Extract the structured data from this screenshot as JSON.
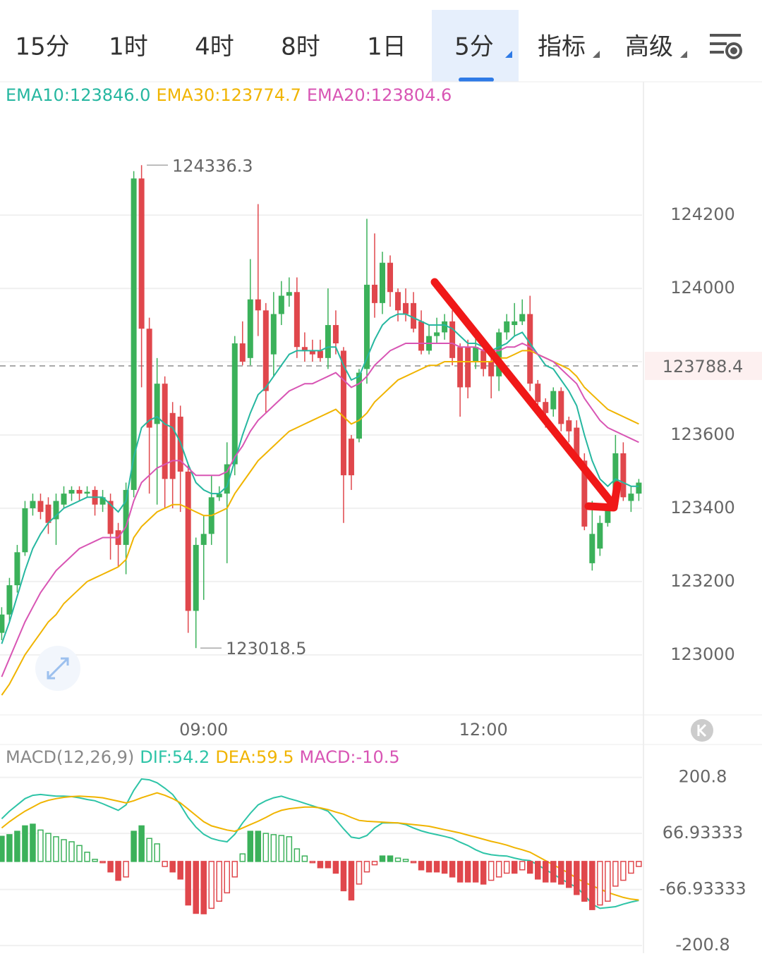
{
  "tabs": {
    "items": [
      "15分",
      "1时",
      "4时",
      "8时",
      "1日",
      "5分",
      "指标",
      "高级"
    ],
    "active": 5
  },
  "chart_data": [
    {
      "type": "candlestick",
      "categories": [
        null,
        null,
        null,
        null,
        null,
        null,
        null,
        null,
        null,
        null,
        null,
        null,
        null,
        null,
        null,
        null,
        null,
        null,
        null,
        null,
        null,
        null,
        null,
        null,
        null,
        null,
        "09:00",
        null,
        null,
        null,
        null,
        null,
        null,
        null,
        null,
        null,
        null,
        null,
        null,
        null,
        null,
        null,
        null,
        null,
        null,
        null,
        null,
        null,
        null,
        null,
        null,
        null,
        null,
        null,
        null,
        null,
        null,
        null,
        null,
        null,
        null,
        null,
        "12:00",
        null,
        null,
        null,
        null,
        null,
        null,
        null,
        null,
        null,
        null,
        null,
        null,
        null,
        null,
        null,
        null,
        null,
        null,
        null,
        null
      ],
      "open": [
        123060,
        123110,
        123190,
        123280,
        123400,
        123420,
        123410,
        123370,
        123410,
        123440,
        123450,
        123440,
        123450,
        123410,
        123420,
        123340,
        123300,
        123450,
        124300,
        123890,
        123630,
        123740,
        123660,
        123650,
        123500,
        123120,
        123300,
        123330,
        123430,
        123440,
        123520,
        123850,
        123810,
        123970,
        123940,
        123820,
        123930,
        123980,
        123990,
        123840,
        123830,
        123830,
        123810,
        123900,
        123830,
        123590,
        123590,
        123780,
        124010,
        123960,
        124070,
        123990,
        123960,
        123960,
        123910,
        123830,
        123870,
        123880,
        123910,
        123840,
        123840,
        123800,
        123830,
        123800,
        123760,
        123880,
        123900,
        123910,
        123930,
        123740,
        123690,
        123670,
        123720,
        123640,
        123620,
        123530,
        123250,
        123290,
        123360,
        123410,
        123550,
        123420,
        123440
      ],
      "high": [
        123130,
        123210,
        123300,
        123420,
        123440,
        123440,
        123430,
        123440,
        123460,
        123460,
        123460,
        123460,
        123460,
        123450,
        123440,
        123360,
        123470,
        124320,
        124336.3,
        123920,
        123810,
        123760,
        123690,
        123680,
        123520,
        123320,
        123380,
        123490,
        123460,
        123580,
        123870,
        123910,
        124080,
        124230,
        123960,
        123990,
        124020,
        124030,
        124030,
        123880,
        123860,
        123860,
        124000,
        123940,
        123840,
        123600,
        123780,
        124190,
        124150,
        124100,
        124090,
        124000,
        124000,
        123990,
        123940,
        123900,
        123920,
        123930,
        123940,
        123850,
        123860,
        123880,
        123850,
        123810,
        123890,
        123930,
        123960,
        123970,
        123980,
        123750,
        123700,
        123730,
        123730,
        123650,
        123640,
        123550,
        123420,
        123380,
        123430,
        123600,
        123580,
        123460,
        123480
      ],
      "low": [
        123040,
        123090,
        123170,
        123270,
        123380,
        123370,
        123330,
        123300,
        123400,
        123420,
        123420,
        123430,
        123380,
        123390,
        123260,
        123240,
        123220,
        123430,
        123730,
        123440,
        123410,
        123400,
        123400,
        123390,
        123060,
        123018.5,
        123150,
        123300,
        123420,
        123250,
        123490,
        123790,
        123790,
        123870,
        123660,
        123760,
        123900,
        123950,
        123810,
        123800,
        123800,
        123800,
        123780,
        123820,
        123360,
        123450,
        123580,
        123740,
        123920,
        123930,
        123950,
        123910,
        123910,
        123880,
        123820,
        123820,
        123850,
        123860,
        123790,
        123650,
        123700,
        123780,
        123760,
        123700,
        123720,
        123860,
        123870,
        123900,
        123720,
        123670,
        123620,
        123650,
        123610,
        123580,
        123520,
        123340,
        123230,
        123270,
        123350,
        123400,
        123420,
        123390,
        123420
      ],
      "close": [
        123110,
        123190,
        123280,
        123400,
        123420,
        123390,
        123360,
        123420,
        123440,
        123450,
        123440,
        123445,
        123410,
        123430,
        123330,
        123300,
        123450,
        124300,
        123890,
        123620,
        123740,
        123480,
        123480,
        123500,
        123120,
        123300,
        123330,
        123430,
        123440,
        123520,
        123850,
        123800,
        123970,
        123940,
        123720,
        123930,
        123980,
        123990,
        123840,
        123830,
        123820,
        123810,
        123900,
        123850,
        123490,
        123490,
        123770,
        124010,
        123960,
        124070,
        123990,
        123940,
        123930,
        123890,
        123830,
        123870,
        123880,
        123910,
        123810,
        123730,
        123730,
        123840,
        123780,
        123760,
        123880,
        123910,
        123910,
        123930,
        123740,
        123690,
        123660,
        123720,
        123630,
        123610,
        123530,
        123350,
        123330,
        123360,
        123410,
        123550,
        123430,
        123440,
        123470
      ],
      "up_color": "#3bb15a",
      "down_color": "#e0474c",
      "lines": [
        {
          "name": "EMA10:",
          "color": "#26b7a0",
          "readout": {
            "value": 123846,
            "label": "123846.0"
          },
          "values": [
            123030,
            123090,
            123160,
            123230,
            123290,
            123330,
            123360,
            123380,
            123400,
            123410,
            123420,
            123430,
            123430,
            123430,
            123410,
            123390,
            123420,
            123540,
            123620,
            123640,
            123650,
            123630,
            123620,
            123580,
            123520,
            123470,
            123450,
            123440,
            123440,
            123460,
            123530,
            123600,
            123660,
            123710,
            123730,
            123760,
            123790,
            123820,
            123830,
            123830,
            123830,
            123830,
            123840,
            123840,
            123790,
            123750,
            123760,
            123810,
            123860,
            123900,
            123920,
            123930,
            123930,
            123920,
            123910,
            123900,
            123900,
            123900,
            123890,
            123870,
            123850,
            123850,
            123840,
            123830,
            123840,
            123850,
            123870,
            123880,
            123850,
            123820,
            123790,
            123780,
            123750,
            123720,
            123680,
            123600,
            123530,
            123480,
            123460,
            123480,
            123470,
            123460,
            123460
          ]
        },
        {
          "name": "EMA30:",
          "color": "#f0b400",
          "readout": 123774.7,
          "values": [
            122890,
            122920,
            122960,
            123000,
            123030,
            123060,
            123090,
            123110,
            123140,
            123160,
            123180,
            123200,
            123210,
            123220,
            123230,
            123240,
            123260,
            123320,
            123350,
            123370,
            123390,
            123400,
            123410,
            123410,
            123400,
            123390,
            123380,
            123380,
            123390,
            123400,
            123440,
            123470,
            123500,
            123530,
            123550,
            123570,
            123590,
            123610,
            123620,
            123630,
            123640,
            123650,
            123660,
            123670,
            123650,
            123630,
            123640,
            123660,
            123690,
            123710,
            123730,
            123750,
            123760,
            123770,
            123780,
            123790,
            123790,
            123800,
            123800,
            123800,
            123800,
            123800,
            123800,
            123800,
            123810,
            123810,
            123820,
            123830,
            123830,
            123820,
            123810,
            123800,
            123790,
            123780,
            123760,
            123730,
            123710,
            123690,
            123670,
            123660,
            123650,
            123640,
            123630
          ]
        },
        {
          "name": "EMA20:",
          "color": "#d855b4",
          "readout": 123804.6,
          "values": [
            122940,
            122990,
            123040,
            123090,
            123130,
            123170,
            123200,
            123230,
            123250,
            123270,
            123290,
            123300,
            123310,
            123320,
            123320,
            123320,
            123350,
            123420,
            123470,
            123490,
            123510,
            123520,
            123530,
            123530,
            123510,
            123490,
            123490,
            123490,
            123490,
            123500,
            123540,
            123570,
            123610,
            123640,
            123660,
            123680,
            123700,
            123720,
            123730,
            123740,
            123740,
            123750,
            123760,
            123770,
            123750,
            123730,
            123740,
            123760,
            123790,
            123810,
            123830,
            123840,
            123850,
            123850,
            123850,
            123850,
            123850,
            123850,
            123850,
            123840,
            123840,
            123840,
            123830,
            123830,
            123830,
            123840,
            123840,
            123850,
            123840,
            123820,
            123810,
            123800,
            123780,
            123760,
            123740,
            123700,
            123670,
            123640,
            123620,
            123610,
            123600,
            123590,
            123580
          ]
        }
      ],
      "annotations": {
        "high": 124336.3,
        "low": 123018.5,
        "last": 123788.4
      },
      "ylim": [
        122840,
        124560
      ],
      "yticks": [
        123000,
        123200,
        123400,
        123600,
        123800,
        124000,
        124200
      ],
      "grid": true
    },
    {
      "type": "macd",
      "title": "MACD(12,26,9)",
      "series": [
        {
          "name": "DIF:",
          "color": "#2ec4a7",
          "readout": 54.2,
          "values": [
            102,
            120,
            135,
            150,
            158,
            160,
            158,
            156,
            156,
            155,
            152,
            148,
            145,
            138,
            130,
            122,
            135,
            170,
            197,
            195,
            188,
            175,
            160,
            135,
            105,
            82,
            65,
            55,
            50,
            47,
            65,
            92,
            115,
            135,
            145,
            152,
            156,
            150,
            145,
            139,
            133,
            127,
            120,
            100,
            78,
            58,
            55,
            62,
            80,
            92,
            92,
            92,
            88,
            80,
            73,
            68,
            64,
            60,
            55,
            46,
            38,
            28,
            20,
            16,
            14,
            13,
            8,
            4,
            2,
            -8,
            -20,
            -30,
            -42,
            -52,
            -62,
            -80,
            -102,
            -112,
            -110,
            -108,
            -102,
            -97,
            -93
          ]
        },
        {
          "name": "DEA:",
          "color": "#f0b400",
          "readout": 59.5,
          "values": [
            80,
            95,
            108,
            120,
            130,
            140,
            146,
            150,
            153,
            155,
            156,
            155,
            154,
            152,
            148,
            144,
            140,
            145,
            152,
            158,
            164,
            158,
            150,
            140,
            125,
            110,
            95,
            85,
            80,
            75,
            72,
            80,
            88,
            96,
            105,
            115,
            122,
            126,
            128,
            130,
            130,
            128,
            124,
            118,
            113,
            105,
            98,
            96,
            95,
            94,
            93,
            92,
            90,
            88,
            86,
            84,
            80,
            76,
            72,
            68,
            63,
            58,
            53,
            48,
            44,
            39,
            33,
            28,
            22,
            12,
            2,
            -8,
            -18,
            -28,
            -40,
            -50,
            -58,
            -66,
            -74,
            -80,
            -86,
            -90,
            -92
          ]
        },
        {
          "name": "MACD:",
          "color": "#d855b4",
          "readout": -10.5,
          "up_color": "#3bb15a",
          "down_color": "#e0474c",
          "values": [
            60,
            64,
            72,
            85,
            89,
            75,
            67,
            59,
            52,
            47,
            38,
            22,
            5,
            -3,
            -25,
            -45,
            -37,
            72,
            85,
            55,
            42,
            -12,
            -25,
            -42,
            -104,
            -124,
            -125,
            -112,
            -95,
            -75,
            -37,
            18,
            72,
            72,
            67,
            64,
            62,
            59,
            30,
            13,
            -3,
            -15,
            -15,
            -28,
            -70,
            -92,
            -54,
            -25,
            -8,
            13,
            13,
            8,
            5,
            -3,
            -20,
            -25,
            -25,
            -28,
            -37,
            -49,
            -49,
            -49,
            -54,
            -45,
            -37,
            -28,
            -28,
            -20,
            -28,
            -42,
            -49,
            -49,
            -54,
            -62,
            -79,
            -95,
            -115,
            -104,
            -95,
            -59,
            -45,
            -28,
            -12
          ]
        }
      ],
      "ylim": [
        -219.2,
        281.1
      ],
      "yticks": [
        200.8,
        66.93333,
        -66.93333,
        -200.8
      ]
    }
  ]
}
